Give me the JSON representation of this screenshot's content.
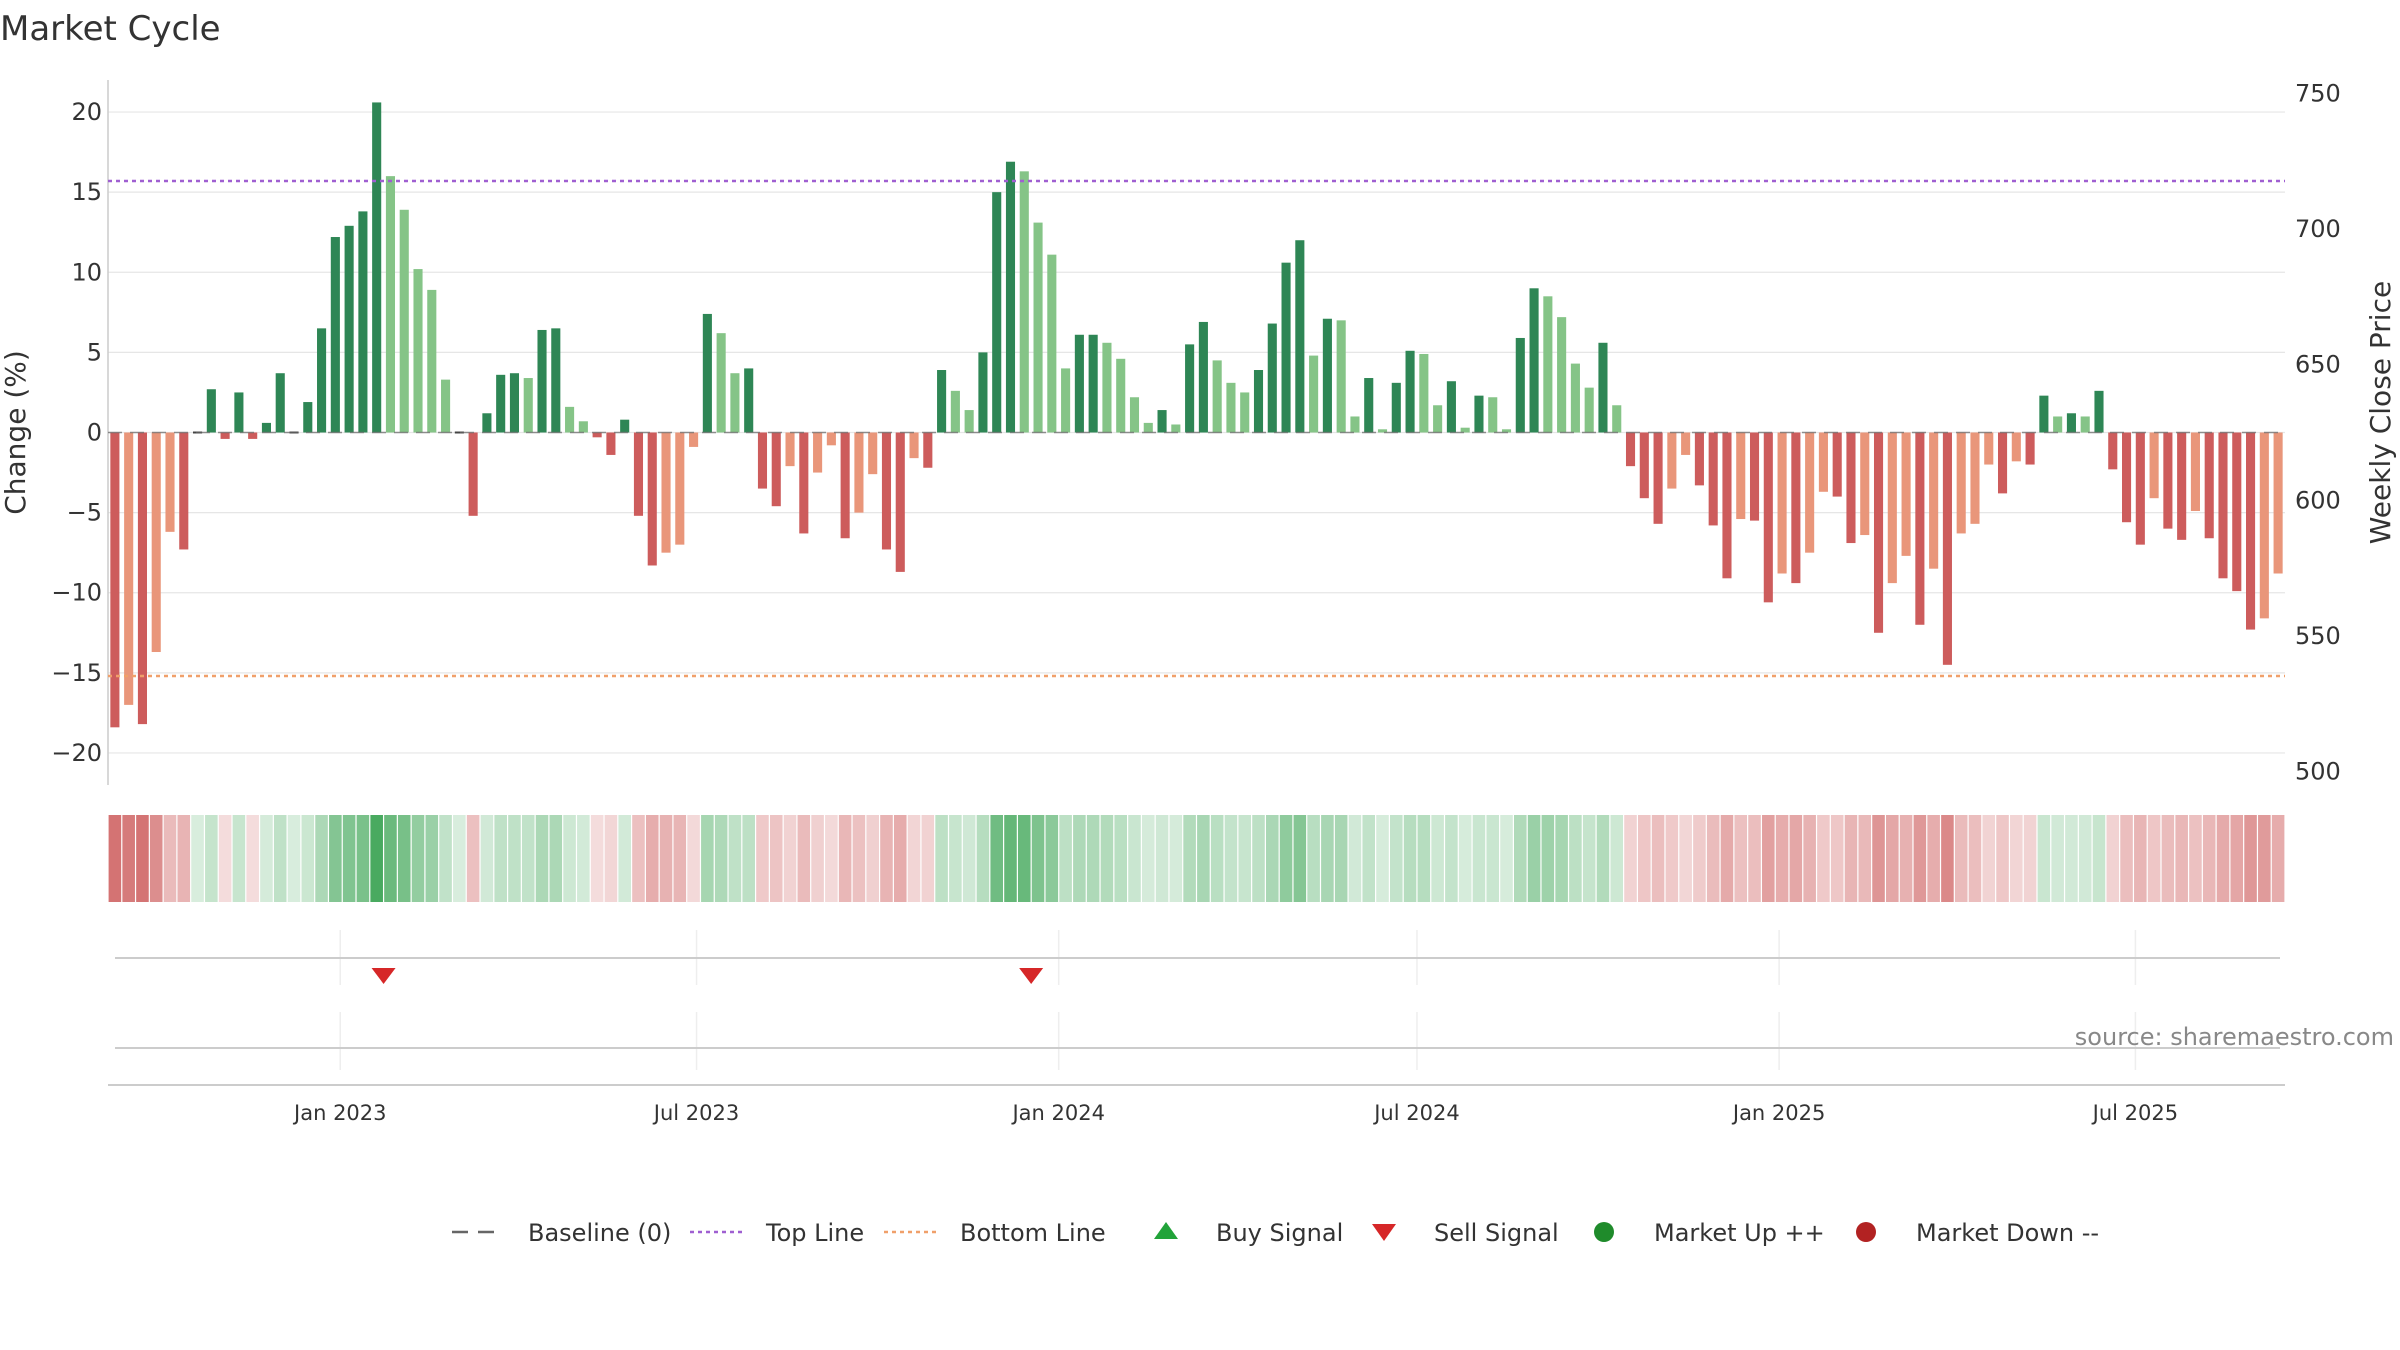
{
  "chart_data": {
    "type": "bar",
    "title": "Market Cycle",
    "ylabel_left": "Change (%)",
    "ylabel_right": "Weekly Close Price",
    "left_ylim": [
      -22,
      22
    ],
    "right_ylim": [
      495,
      755
    ],
    "left_ticks": [
      20,
      15,
      10,
      5,
      0,
      -5,
      -10,
      -15,
      -20
    ],
    "left_tick_labels": [
      "20",
      "15",
      "10",
      "5",
      "0",
      "−5",
      "−10",
      "−15",
      "−20"
    ],
    "right_ticks": [
      750,
      700,
      650,
      600,
      550,
      500
    ],
    "right_tick_labels": [
      "750",
      "700",
      "650",
      "600",
      "550",
      "500"
    ],
    "top_line": 15.7,
    "bottom_line": -15.2,
    "x_start": "2022-09-05",
    "x_end": "2025-09-15",
    "week_interval_days": 7,
    "date_ticks": [
      {
        "label": "Jan 2023",
        "date": "2023-01-01"
      },
      {
        "label": "Jul 2023",
        "date": "2023-07-01"
      },
      {
        "label": "Jan 2024",
        "date": "2024-01-01"
      },
      {
        "label": "Jul 2024",
        "date": "2024-07-01"
      },
      {
        "label": "Jan 2025",
        "date": "2025-01-01"
      },
      {
        "label": "Jul 2025",
        "date": "2025-07-01"
      }
    ],
    "values": [
      -18.4,
      -17.0,
      -18.2,
      -13.7,
      -6.2,
      -7.3,
      0,
      2.7,
      -0.4,
      2.5,
      -0.4,
      0.6,
      3.7,
      0,
      1.9,
      6.5,
      12.2,
      12.9,
      13.8,
      20.6,
      16.0,
      13.9,
      10.2,
      8.9,
      3.3,
      0,
      -5.2,
      1.2,
      3.6,
      3.7,
      3.4,
      6.4,
      6.5,
      1.6,
      0.7,
      -0.3,
      -1.4,
      0.8,
      -5.2,
      -8.3,
      -7.5,
      -7.0,
      -0.9,
      7.4,
      6.2,
      3.7,
      4.0,
      -3.5,
      -4.6,
      -2.1,
      -6.3,
      -2.5,
      -0.8,
      -6.6,
      -5.0,
      -2.6,
      -7.3,
      -8.7,
      -1.6,
      -2.2,
      3.9,
      2.6,
      1.4,
      5.0,
      15.0,
      16.9,
      16.3,
      13.1,
      11.1,
      4.0,
      6.1,
      6.1,
      5.6,
      4.6,
      2.2,
      0.6,
      1.4,
      0.5,
      5.5,
      6.9,
      4.5,
      3.1,
      2.5,
      3.9,
      6.8,
      10.6,
      12.0,
      4.8,
      7.1,
      7.0,
      1.0,
      3.4,
      0.2,
      3.1,
      5.1,
      4.9,
      1.7,
      3.2,
      0.3,
      2.3,
      2.2,
      0.2,
      5.9,
      9.0,
      8.5,
      7.2,
      4.3,
      2.8,
      5.6,
      1.7,
      -2.1,
      -4.1,
      -5.7,
      -3.5,
      -1.4,
      -3.3,
      -5.8,
      -9.1,
      -5.4,
      -5.5,
      -10.6,
      -8.8,
      -9.4,
      -7.5,
      -3.7,
      -4.0,
      -6.9,
      -6.4,
      -12.5,
      -9.4,
      -7.7,
      -12.0,
      -8.5,
      -14.5,
      -6.3,
      -5.7,
      -2.0,
      -3.8,
      -1.8,
      -2.0,
      2.3,
      1.0,
      1.2,
      1.0,
      2.6,
      -2.3,
      -5.6,
      -7.0,
      -4.1,
      -6.0,
      -6.7,
      -4.9,
      -6.6,
      -9.1,
      -9.9,
      -12.3,
      -11.6,
      -8.8
    ],
    "sell_signals": [
      "2023-01-23",
      "2023-12-18"
    ],
    "buy_signals": [],
    "market_up_points": [],
    "market_down_points": [],
    "colors": {
      "pos_strong": "#2e8655",
      "pos_light": "#85c487",
      "neg_strong": "#cd5c5c",
      "neg_light": "#e9967a",
      "heat_pos": "#3ea556",
      "heat_neg": "#cd5c5c",
      "top_line": "#9f5fd1",
      "bottom_line": "#f0a06a",
      "baseline": "#666666",
      "sell": "#d62728",
      "buy": "#22a33a",
      "market_up": "#1f8b2b",
      "market_down": "#b22222",
      "grid": "#e6e6e6"
    },
    "legend": [
      {
        "label": "Baseline (0)",
        "kind": "dash",
        "color_key": "baseline"
      },
      {
        "label": "Top Line",
        "kind": "dot",
        "color_key": "top_line"
      },
      {
        "label": "Bottom Line",
        "kind": "dot",
        "color_key": "bottom_line"
      },
      {
        "label": "Buy Signal",
        "kind": "tri-up",
        "color_key": "buy"
      },
      {
        "label": "Sell Signal",
        "kind": "tri-down",
        "color_key": "sell"
      },
      {
        "label": "Market Up ++",
        "kind": "circle",
        "color_key": "market_up"
      },
      {
        "label": "Market Down --",
        "kind": "circle",
        "color_key": "market_down"
      }
    ],
    "legend_position": "bottom-center",
    "source": "source: sharemaestro.com"
  }
}
